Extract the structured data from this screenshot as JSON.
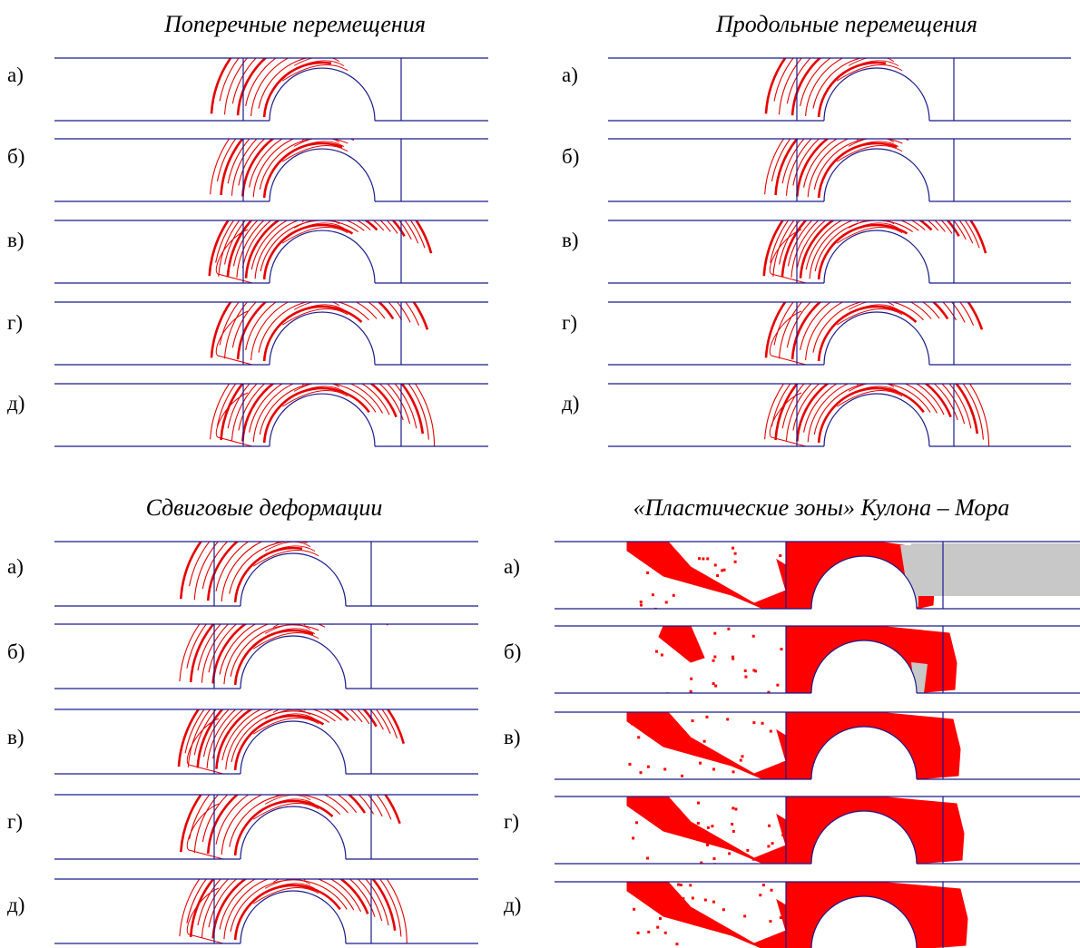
{
  "figure": {
    "quadrants": [
      {
        "id": "transverse",
        "title": "Поперечные перемещения",
        "pattern": "contours",
        "variant": 0,
        "labels": [
          "а)",
          "б)",
          "в)",
          "г)",
          "д)"
        ]
      },
      {
        "id": "longitudinal",
        "title": "Продольные перемещения",
        "pattern": "contours",
        "variant": 1,
        "labels": [
          "а)",
          "б)",
          "в)",
          "г)",
          "д)"
        ]
      },
      {
        "id": "shear",
        "title": "Сдвиговые деформации",
        "pattern": "contours",
        "variant": 2,
        "labels": [
          "а)",
          "б)",
          "в)",
          "г)",
          "д)"
        ]
      },
      {
        "id": "plastic",
        "title": "«Пластические зоны» Кулона – Мора",
        "pattern": "zones",
        "variant": 3,
        "labels": [
          "а)",
          "б)",
          "в)",
          "г)",
          "д)"
        ]
      }
    ],
    "colors": {
      "frame": "#1a1a8c",
      "contour": "#e60000",
      "zone": "#ff0000",
      "zone_gray": "#c8c8c8"
    }
  }
}
